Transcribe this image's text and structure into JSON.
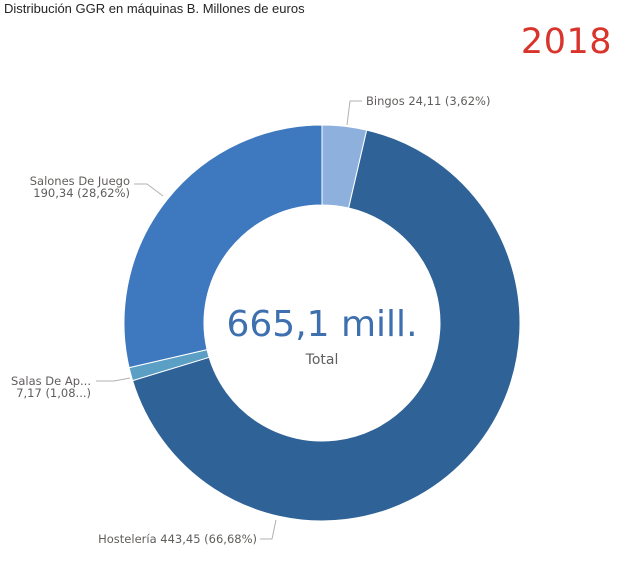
{
  "header": {
    "title": "Distribución GGR en máquinas B. Millones de euros",
    "year": "2018"
  },
  "chart_data": {
    "type": "donut",
    "title": "Distribución GGR en máquinas B. Millones de euros",
    "units": "Millones de euros",
    "total_value": 665.1,
    "total_display": "665,1 mill.",
    "total_label": "Total",
    "slices": [
      {
        "name": "Bingos",
        "value": 24.11,
        "percent": 3.62,
        "label_name": "Bingos",
        "label_value": "24,11 (3,62%)",
        "color": "#8eb0dd"
      },
      {
        "name": "Hostelería",
        "value": 443.45,
        "percent": 66.68,
        "label_name": "Hostelería",
        "label_value": "443,45 (66,68%)",
        "color": "#2f6296"
      },
      {
        "name": "Salas De Ap...",
        "value": 7.17,
        "percent": 1.08,
        "label_name": "Salas De Ap...",
        "label_value": "7,17 (1,08...)",
        "color": "#5b9fc4"
      },
      {
        "name": "Salones De Juego",
        "value": 190.34,
        "percent": 28.62,
        "label_name": "Salones De Juego",
        "label_value": "190,34 (28,62%)",
        "color": "#3e78be"
      }
    ]
  }
}
